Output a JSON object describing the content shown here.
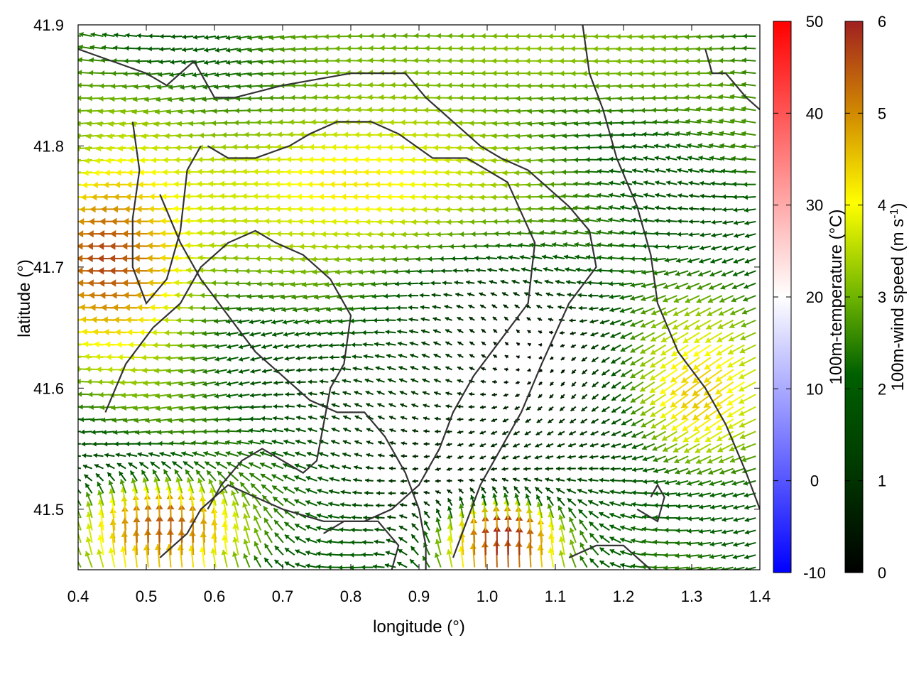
{
  "chart_data": {
    "type": "vector-field",
    "xlabel": "longitude (°)",
    "ylabel": "latitude (°)",
    "xlim": [
      0.4,
      1.4
    ],
    "ylim": [
      41.45,
      41.9
    ],
    "x_ticks": [
      "0.4",
      "0.5",
      "0.6",
      "0.7",
      "0.8",
      "0.9",
      "1.0",
      "1.1",
      "1.2",
      "1.3",
      "1.4"
    ],
    "y_ticks": [
      "41.5",
      "41.6",
      "41.7",
      "41.8",
      "41.9"
    ],
    "grid": false,
    "colorbars": [
      {
        "name": "temperature",
        "label": "100m-temperature (°C)",
        "range": [
          -10,
          50
        ],
        "ticks": [
          "-10",
          "0",
          "10",
          "20",
          "30",
          "40",
          "50"
        ],
        "colors": [
          "#0000ff",
          "#ffffff",
          "#ff0000"
        ]
      },
      {
        "name": "wind_speed",
        "label": "100m-wind speed (m s-1)",
        "range": [
          0,
          6
        ],
        "ticks": [
          "0",
          "1",
          "2",
          "3",
          "4",
          "5",
          "6"
        ],
        "colors": [
          "#000000",
          "#005a00",
          "#8cc800",
          "#ffff00",
          "#d28c00",
          "#a02020"
        ]
      }
    ],
    "wind_field": {
      "description_units": "direction in degrees toward which wind blows, speed in m/s",
      "regimes": [
        {
          "lon": [
            0.4,
            0.55
          ],
          "lat": [
            41.65,
            41.77
          ],
          "speed": 5.8,
          "direction": "westward"
        },
        {
          "lon": [
            0.6,
            1.05
          ],
          "lat": [
            41.72,
            41.82
          ],
          "speed": 4.2,
          "direction": "westward"
        },
        {
          "lon": [
            0.8,
            1.35
          ],
          "lat": [
            41.85,
            41.9
          ],
          "speed": 3.2,
          "direction": "westward"
        },
        {
          "lon": [
            1.25,
            1.4
          ],
          "lat": [
            41.55,
            41.65
          ],
          "speed": 4.5,
          "direction": "southwestward"
        },
        {
          "lon": [
            0.4,
            0.65
          ],
          "lat": [
            41.45,
            41.5
          ],
          "speed": 5.5,
          "direction": "northward"
        },
        {
          "lon": [
            0.95,
            1.1
          ],
          "lat": [
            41.45,
            41.48
          ],
          "speed": 6.0,
          "direction": "northward"
        },
        {
          "lon": [
            0.85,
            1.2
          ],
          "lat": [
            41.5,
            41.7
          ],
          "speed": 1.0,
          "direction": "variable"
        }
      ]
    },
    "contours": "terrain outline (coast / orography)"
  }
}
